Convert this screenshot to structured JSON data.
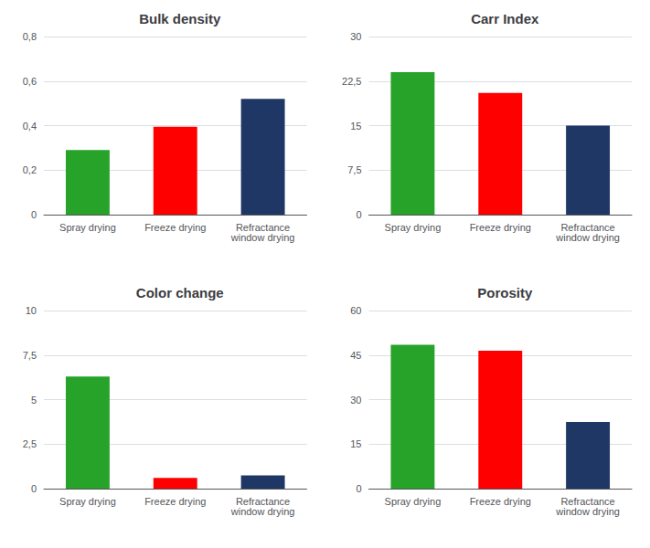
{
  "chart_data": [
    {
      "type": "bar",
      "title": "Bulk density",
      "categories": [
        "Spray drying",
        "Freeze drying",
        "Refractance\nwindow drying"
      ],
      "values": [
        0.29,
        0.395,
        0.52
      ],
      "colors": [
        "#27a329",
        "#ff0000",
        "#1f3764"
      ],
      "ylim": [
        0,
        0.8
      ],
      "yticks": [
        0,
        {
          "value": 0.2,
          "label": "0,2"
        },
        {
          "value": 0.4,
          "label": "0,4"
        },
        {
          "value": 0.6,
          "label": "0,6"
        },
        {
          "value": 0.8,
          "label": "0,8"
        }
      ],
      "grid": true
    },
    {
      "type": "bar",
      "title": "Carr Index",
      "categories": [
        "Spray drying",
        "Freeze drying",
        "Refractance\nwindow drying"
      ],
      "values": [
        24.0,
        20.5,
        15.0
      ],
      "colors": [
        "#27a329",
        "#ff0000",
        "#1f3764"
      ],
      "ylim": [
        0,
        30
      ],
      "yticks": [
        0,
        {
          "value": 7.5,
          "label": "7,5"
        },
        15,
        {
          "value": 22.5,
          "label": "22,5"
        },
        30
      ],
      "grid": true
    },
    {
      "type": "bar",
      "title": "Color change",
      "categories": [
        "Spray drying",
        "Freeze drying",
        "Refractance\nwindow drying"
      ],
      "values": [
        6.3,
        0.6,
        0.75
      ],
      "colors": [
        "#27a329",
        "#ff0000",
        "#1f3764"
      ],
      "ylim": [
        0,
        10
      ],
      "yticks": [
        0,
        {
          "value": 2.5,
          "label": "2,5"
        },
        5,
        {
          "value": 7.5,
          "label": "7,5"
        },
        10
      ],
      "grid": true
    },
    {
      "type": "bar",
      "title": "Porosity",
      "categories": [
        "Spray drying",
        "Freeze drying",
        "Refractance\nwindow drying"
      ],
      "values": [
        48.5,
        46.5,
        22.5
      ],
      "colors": [
        "#27a329",
        "#ff0000",
        "#1f3764"
      ],
      "ylim": [
        0,
        60
      ],
      "yticks": [
        0,
        15,
        30,
        45,
        60
      ],
      "grid": true
    }
  ]
}
